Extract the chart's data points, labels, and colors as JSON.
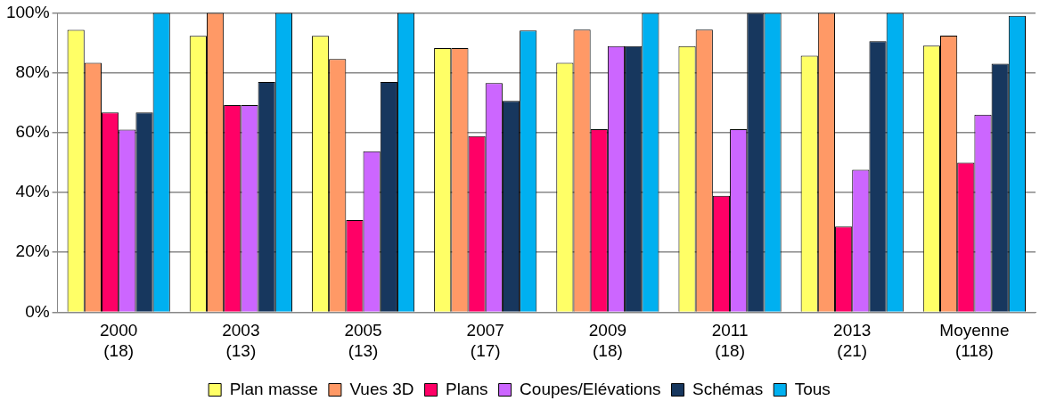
{
  "chart_data": {
    "type": "bar",
    "categories": [
      "2000\n(18)",
      "2003\n(13)",
      "2005\n(13)",
      "2007\n(17)",
      "2009\n(18)",
      "2011\n(18)",
      "2013\n(21)",
      "Moyenne\n(118)"
    ],
    "series": [
      {
        "name": "Plan masse",
        "color": "#ffff66",
        "values": [
          94.3,
          92.3,
          92.3,
          88.2,
          83.3,
          88.9,
          85.7,
          89
        ]
      },
      {
        "name": "Vues 3D",
        "color": "#ff9966",
        "values": [
          83.3,
          100,
          84.6,
          88.2,
          94.4,
          94.4,
          100,
          92.4
        ]
      },
      {
        "name": "Plans",
        "color": "#ff0066",
        "values": [
          66.7,
          69.2,
          30.8,
          58.8,
          61.1,
          38.9,
          28.6,
          50
        ]
      },
      {
        "name": "Coupes/Elévations",
        "color": "#cc66ff",
        "values": [
          61,
          69.2,
          53.8,
          76.5,
          88.9,
          61.1,
          47.6,
          66
        ]
      },
      {
        "name": "Schémas",
        "color": "#17375e",
        "values": [
          66.7,
          76.9,
          76.9,
          70.6,
          88.9,
          100,
          90.5,
          83
        ]
      },
      {
        "name": "Tous",
        "color": "#00b0f0",
        "values": [
          100,
          100,
          100,
          94.1,
          100,
          100,
          100,
          99
        ]
      }
    ],
    "ylim": [
      0,
      100
    ],
    "yticks": [
      {
        "value": 0,
        "label": "0%"
      },
      {
        "value": 20,
        "label": "20%"
      },
      {
        "value": 40,
        "label": "40%"
      },
      {
        "value": 60,
        "label": "60%"
      },
      {
        "value": 80,
        "label": "80%"
      },
      {
        "value": 100,
        "label": "100%"
      }
    ],
    "grid": "y",
    "legend": "bottom"
  }
}
